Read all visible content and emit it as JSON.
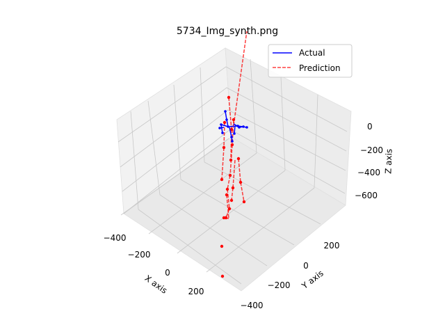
{
  "chart_data": {
    "type": "line3d",
    "title": "5734_Img_synth.png",
    "xlabel": "X axis",
    "ylabel": "Y axis",
    "zlabel": "Z axis",
    "xticks": [
      "−400",
      "−200",
      "0",
      "200"
    ],
    "yticks": [
      "−400",
      "−200",
      "0",
      "200"
    ],
    "zticks": [
      "0",
      "−200",
      "−400",
      "−600"
    ],
    "legend_position": "top-right",
    "grid": true,
    "series": [
      {
        "name": "Actual",
        "color": "#0000ff",
        "style": "solid",
        "bones": [
          [
            [
              318,
              179
            ],
            [
              328,
              182
            ]
          ],
          [
            [
              328,
              182
            ],
            [
              342,
              181
            ]
          ],
          [
            [
              342,
              181
            ],
            [
              355,
              183
            ]
          ],
          [
            [
              318,
              179
            ],
            [
              320,
              191
            ]
          ],
          [
            [
              328,
              182
            ],
            [
              326,
              172
            ]
          ],
          [
            [
              326,
              172
            ],
            [
              324,
              160
            ]
          ],
          [
            [
              330,
              183
            ],
            [
              333,
              197
            ]
          ],
          [
            [
              333,
              197
            ],
            [
              334,
              203
            ]
          ],
          [
            [
              338,
              181
            ],
            [
              337,
              192
            ]
          ],
          [
            [
              336,
              178
            ],
            [
              344,
              183
            ]
          ],
          [
            [
              344,
              183
            ],
            [
              350,
              182
            ]
          ],
          [
            [
              322,
              183
            ],
            [
              316,
              184
            ]
          ]
        ],
        "joints": [
          [
            318,
            179
          ],
          [
            328,
            182
          ],
          [
            342,
            181
          ],
          [
            355,
            183
          ],
          [
            320,
            191
          ],
          [
            326,
            172
          ],
          [
            333,
            197
          ],
          [
            334,
            203
          ],
          [
            337,
            192
          ],
          [
            344,
            183
          ],
          [
            350,
            182
          ],
          [
            316,
            184
          ],
          [
            324,
            160
          ]
        ]
      },
      {
        "name": "Prediction",
        "color": "#ff0000",
        "style": "dashed",
        "bones": [
          [
            [
              336,
              180
            ],
            [
              355,
              45
            ]
          ],
          [
            [
              329,
              140
            ],
            [
              333,
              186
            ]
          ],
          [
            [
              333,
              186
            ],
            [
              332,
              230
            ]
          ],
          [
            [
              323,
              176
            ],
            [
              322,
              212
            ]
          ],
          [
            [
              322,
              212
            ],
            [
              319,
              258
            ]
          ],
          [
            [
              336,
              172
            ],
            [
              334,
              208
            ]
          ],
          [
            [
              334,
              208
            ],
            [
              331,
              252
            ]
          ],
          [
            [
              331,
              252
            ],
            [
              327,
              272
            ]
          ],
          [
            [
              327,
              272
            ],
            [
              330,
              300
            ]
          ],
          [
            [
              330,
              300
            ],
            [
              325,
              313
            ]
          ],
          [
            [
              343,
              228
            ],
            [
              346,
              262
            ]
          ],
          [
            [
              346,
              262
            ],
            [
              351,
              290
            ]
          ],
          [
            [
              338,
              230
            ],
            [
              335,
              270
            ]
          ],
          [
            [
              335,
              270
            ],
            [
              333,
              288
            ]
          ],
          [
            [
              326,
              280
            ],
            [
              329,
              314
            ]
          ],
          [
            [
              329,
              314
            ],
            [
              322,
              313
            ]
          ]
        ],
        "joints": [
          [
            329,
            140
          ],
          [
            336,
            172
          ],
          [
            323,
            176
          ],
          [
            333,
            186
          ],
          [
            322,
            212
          ],
          [
            334,
            208
          ],
          [
            343,
            228
          ],
          [
            332,
            230
          ],
          [
            319,
            258
          ],
          [
            331,
            252
          ],
          [
            327,
            272
          ],
          [
            346,
            262
          ],
          [
            335,
            270
          ],
          [
            351,
            290
          ],
          [
            333,
            288
          ],
          [
            330,
            300
          ],
          [
            326,
            280
          ],
          [
            325,
            313
          ],
          [
            322,
            313
          ],
          [
            319,
            354
          ],
          [
            320,
            397
          ]
        ]
      }
    ]
  }
}
